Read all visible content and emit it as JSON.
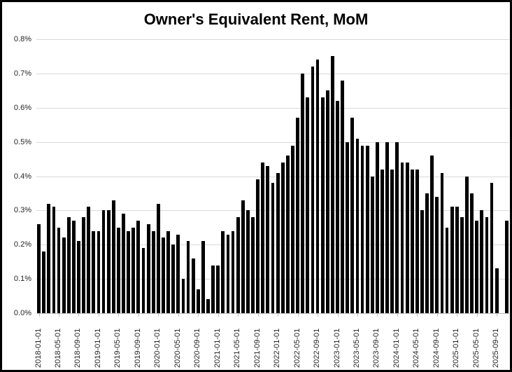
{
  "title": "Owner's Equivalent Rent, MoM",
  "chart_data": {
    "type": "bar",
    "title": "Owner's Equivalent Rent, MoM",
    "xlabel": "",
    "ylabel": "",
    "ylim": [
      0,
      0.8
    ],
    "grid": true,
    "legend_position": "none",
    "bar_color": "#000000",
    "gridline_color": "#d9d9d9",
    "axis_line_color": "#bfbfbf",
    "label_color": "#262626",
    "y_tick_labels": [
      "0.0%",
      "0.1%",
      "0.2%",
      "0.3%",
      "0.4%",
      "0.5%",
      "0.6%",
      "0.7%",
      "0.8%"
    ],
    "x_tick_labels": [
      "2018-01-01",
      "2018-05-01",
      "2018-09-01",
      "2019-01-01",
      "2019-05-01",
      "2019-09-01",
      "2020-01-01",
      "2020-05-01",
      "2020-09-01",
      "2021-01-01",
      "2021-05-01",
      "2021-09-01",
      "2022-01-01",
      "2022-05-01",
      "2022-09-01",
      "2023-01-01",
      "2023-05-01",
      "2023-09-01",
      "2024-01-01",
      "2024-05-01",
      "2024-09-01",
      "2025-01-01",
      "2025-05-01",
      "2025-09-01"
    ],
    "x_tick_every": 4,
    "months": [
      "2018-01",
      "2018-02",
      "2018-03",
      "2018-04",
      "2018-05",
      "2018-06",
      "2018-07",
      "2018-08",
      "2018-09",
      "2018-10",
      "2018-11",
      "2018-12",
      "2019-01",
      "2019-02",
      "2019-03",
      "2019-04",
      "2019-05",
      "2019-06",
      "2019-07",
      "2019-08",
      "2019-09",
      "2019-10",
      "2019-11",
      "2019-12",
      "2020-01",
      "2020-02",
      "2020-03",
      "2020-04",
      "2020-05",
      "2020-06",
      "2020-07",
      "2020-08",
      "2020-09",
      "2020-10",
      "2020-11",
      "2020-12",
      "2021-01",
      "2021-02",
      "2021-03",
      "2021-04",
      "2021-05",
      "2021-06",
      "2021-07",
      "2021-08",
      "2021-09",
      "2021-10",
      "2021-11",
      "2021-12",
      "2022-01",
      "2022-02",
      "2022-03",
      "2022-04",
      "2022-05",
      "2022-06",
      "2022-07",
      "2022-08",
      "2022-09",
      "2022-10",
      "2022-11",
      "2022-12",
      "2023-01",
      "2023-02",
      "2023-03",
      "2023-04",
      "2023-05",
      "2023-06",
      "2023-07",
      "2023-08",
      "2023-09",
      "2023-10",
      "2023-11",
      "2023-12",
      "2024-01",
      "2024-02",
      "2024-03",
      "2024-04",
      "2024-05",
      "2024-06",
      "2024-07",
      "2024-08",
      "2024-09",
      "2024-10",
      "2024-11",
      "2024-12",
      "2025-01",
      "2025-02",
      "2025-03",
      "2025-04",
      "2025-05",
      "2025-06",
      "2025-07",
      "2025-08",
      "2025-09",
      "2025-10",
      "2025-11"
    ],
    "values": [
      0.26,
      0.18,
      0.32,
      0.31,
      0.25,
      0.22,
      0.28,
      0.27,
      0.21,
      0.28,
      0.31,
      0.24,
      0.24,
      0.3,
      0.3,
      0.33,
      0.25,
      0.29,
      0.24,
      0.25,
      0.27,
      0.19,
      0.26,
      0.24,
      0.32,
      0.22,
      0.24,
      0.2,
      0.23,
      0.1,
      0.21,
      0.16,
      0.07,
      0.21,
      0.04,
      0.14,
      0.14,
      0.24,
      0.23,
      0.24,
      0.28,
      0.33,
      0.3,
      0.28,
      0.39,
      0.44,
      0.43,
      0.38,
      0.41,
      0.44,
      0.46,
      0.49,
      0.57,
      0.7,
      0.63,
      0.72,
      0.74,
      0.63,
      0.65,
      0.75,
      0.62,
      0.68,
      0.5,
      0.57,
      0.51,
      0.49,
      0.49,
      0.4,
      0.5,
      0.42,
      0.5,
      0.42,
      0.5,
      0.44,
      0.44,
      0.42,
      0.42,
      0.3,
      0.35,
      0.46,
      0.34,
      0.41,
      0.25,
      0.31,
      0.31,
      0.28,
      0.4,
      0.35,
      0.27,
      0.3,
      0.28,
      0.38,
      0.13,
      null,
      0.27
    ]
  }
}
